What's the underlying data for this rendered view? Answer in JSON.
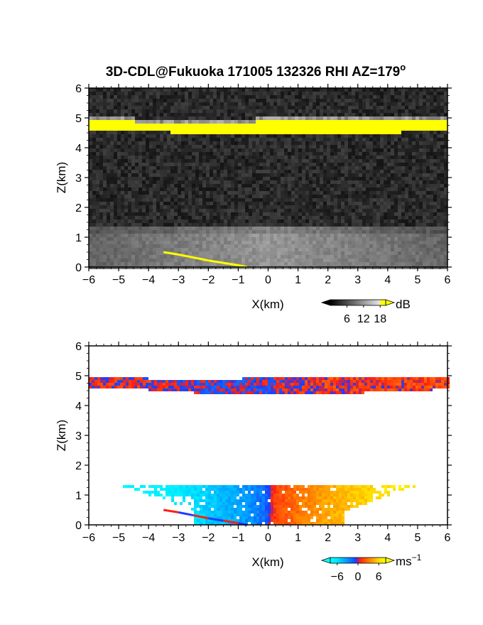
{
  "figure": {
    "title": "3D-CDL@Fukuoka 171005 132326 RHI AZ=179",
    "title_superscript": "o"
  },
  "colors": {
    "background": "#ffffff",
    "reflectivity_high": "#ffff00",
    "velocity_negative": "#00ffff",
    "velocity_zero_blue": "#1e3cff",
    "velocity_zero_red": "#ff2010",
    "velocity_positive": "#ffff00"
  },
  "chart_data": [
    {
      "type": "heatmap",
      "panel": "reflectivity",
      "xlabel": "X(km)",
      "ylabel": "Z(km)",
      "xlim": [
        -6,
        6
      ],
      "ylim": [
        0,
        6
      ],
      "x_ticks": [
        "−6",
        "−5",
        "−4",
        "−3",
        "−2",
        "−1",
        "0",
        "1",
        "2",
        "3",
        "4",
        "5",
        "6"
      ],
      "y_ticks": [
        "0",
        "1",
        "2",
        "3",
        "4",
        "5",
        "6"
      ],
      "colorbar": {
        "unit": "dB",
        "ticks": [
          "6",
          "12",
          "18"
        ],
        "tick_values": [
          6,
          12,
          18
        ],
        "range": [
          0,
          20
        ],
        "colormap": "grayscale with yellow above 18"
      },
      "features": [
        {
          "name": "cloud layer",
          "z_top_km": [
            4.95,
            4.95,
            4.9,
            4.85,
            4.85,
            4.9,
            4.95,
            4.95,
            4.95,
            4.95,
            4.95,
            4.95,
            4.95
          ],
          "z_bottom_km": [
            4.65,
            4.65,
            4.62,
            4.55,
            4.5,
            4.48,
            4.5,
            4.52,
            4.5,
            4.52,
            4.55,
            4.6,
            4.65
          ],
          "x_km": [
            -6,
            -5,
            -4,
            -3,
            -2,
            -1,
            0,
            1,
            2,
            3,
            4,
            5,
            6
          ],
          "value_db": 19
        },
        {
          "name": "boundary layer",
          "z_top_km": 1.4,
          "x_range_km": [
            -6,
            6
          ],
          "value_db": 12
        },
        {
          "name": "ground clutter",
          "x_km": [
            -3.5,
            -3,
            -2.5,
            -2,
            -1.5,
            -1,
            -0.7
          ],
          "z_km": [
            0.5,
            0.42,
            0.32,
            0.22,
            0.14,
            0.06,
            0.0
          ],
          "value_db": 19
        }
      ]
    },
    {
      "type": "heatmap",
      "panel": "doppler velocity",
      "xlabel": "X(km)",
      "ylabel": "Z(km)",
      "xlim": [
        -6,
        6
      ],
      "ylim": [
        0,
        6
      ],
      "x_ticks": [
        "−6",
        "−5",
        "−4",
        "−3",
        "−2",
        "−1",
        "0",
        "1",
        "2",
        "3",
        "4",
        "5",
        "6"
      ],
      "y_ticks": [
        "0",
        "1",
        "2",
        "3",
        "4",
        "5",
        "6"
      ],
      "colorbar": {
        "unit": "ms",
        "unit_superscript": "−1",
        "ticks": [
          "−6",
          "0",
          "6"
        ],
        "tick_values": [
          -6,
          0,
          6
        ],
        "range": [
          -8,
          8
        ],
        "colormap": "cyan-blue-red-orange-yellow"
      },
      "features": [
        {
          "name": "cloud layer velocity",
          "x_km": [
            -6,
            -4,
            -2,
            -1,
            0,
            1,
            2,
            4,
            6
          ],
          "velocity_ms": [
            0.5,
            0.5,
            -0.5,
            -0.5,
            -0.3,
            0.5,
            1,
            1,
            1.5
          ]
        },
        {
          "name": "boundary layer velocity",
          "x_km": [
            -5.3,
            -4,
            -3,
            -2,
            -1,
            -0.2,
            0.2,
            1,
            2,
            3,
            4,
            5
          ],
          "velocity_ms": [
            -7.5,
            -7,
            -6.5,
            -5,
            -3.5,
            -2,
            1.5,
            3,
            4.5,
            5.5,
            6.5,
            7
          ]
        },
        {
          "name": "ground clutter velocity",
          "x_km": [
            -3.5,
            -2.5,
            -1.5
          ],
          "velocity_ms": [
            0.3,
            0.3,
            0.3
          ]
        }
      ]
    }
  ]
}
